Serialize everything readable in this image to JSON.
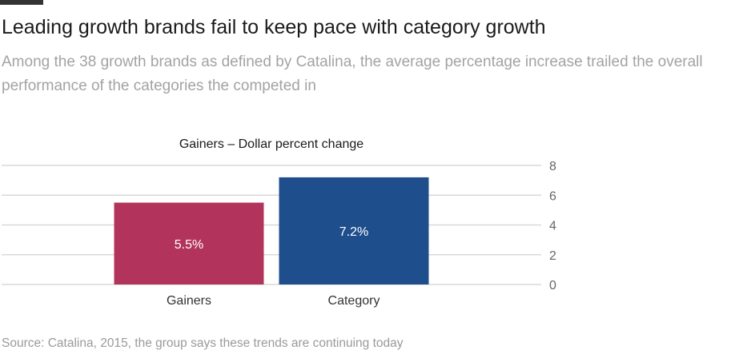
{
  "header": {
    "headline": "Leading growth brands fail to keep pace with category growth",
    "subtitle": "Among the 38 growth brands as defined by Catalina, the average percentage increase trailed the overall performance of the categories the competed in"
  },
  "footer": {
    "source": "Source: Catalina, 2015, the group says these trends are continuing today"
  },
  "colors": {
    "gainers_bar": "#b2345c",
    "category_bar": "#1f4e8c",
    "gridline": "#d9d9d9",
    "axis_text": "#666666"
  },
  "chart_data": {
    "type": "bar",
    "title": "Gainers – Dollar percent change",
    "categories": [
      "Gainers",
      "Category"
    ],
    "values": [
      5.5,
      7.2
    ],
    "data_labels": [
      "5.5%",
      "7.2%"
    ],
    "xlabel": "",
    "ylabel": "",
    "ylim": [
      0,
      8
    ],
    "yticks": [
      0,
      2,
      4,
      6,
      8
    ],
    "ytick_labels": [
      "0",
      "2",
      "4",
      "6",
      "8"
    ],
    "grid": true,
    "y_axis_side": "right"
  }
}
